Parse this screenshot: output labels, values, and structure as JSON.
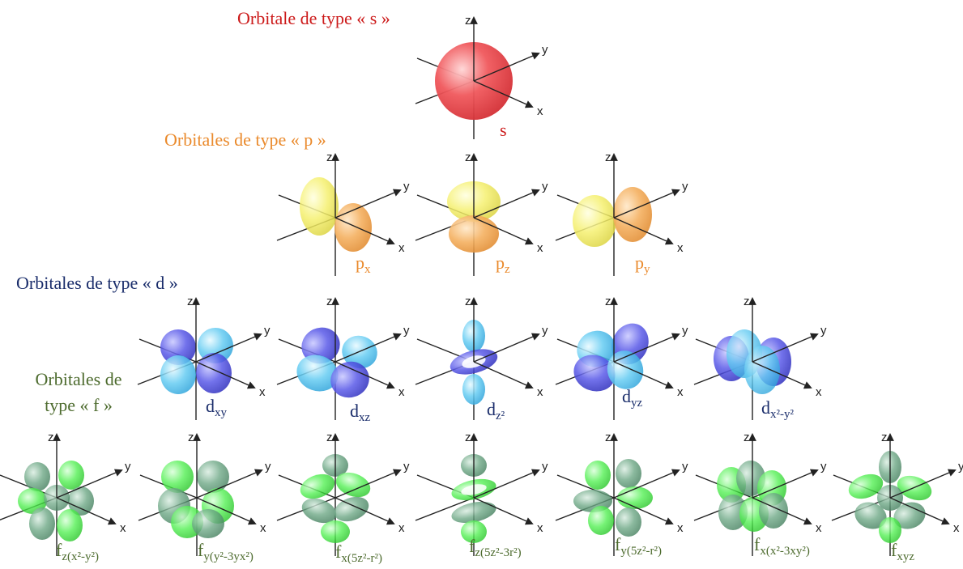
{
  "colors": {
    "s_heading": "#cc1a1a",
    "p_heading": "#ea8a2c",
    "d_heading": "#1a2d6b",
    "f_heading": "#4d6b2e",
    "s_orbital": "#f0585c",
    "p_pos": "#f5f070",
    "p_neg": "#f4b060",
    "d_pos": "#5a5ae8",
    "d_neg": "#66ccf2",
    "f_pos": "#55f055",
    "f_neg": "#6ea886",
    "axis": "#222222"
  },
  "headings": {
    "s": "Orbitale de type « s »",
    "p": "Orbitales de type « p »",
    "d": "Orbitales de type « d »",
    "f_line1": "Orbitales de",
    "f_line2": "type « f »"
  },
  "axes": {
    "x": "x",
    "y": "y",
    "z": "z"
  },
  "orbitals": {
    "s": {
      "main": "s",
      "sub": ""
    },
    "px": {
      "main": "p",
      "sub": "x"
    },
    "pz": {
      "main": "p",
      "sub": "z"
    },
    "py": {
      "main": "p",
      "sub": "y"
    },
    "dxy": {
      "main": "d",
      "sub": "xy"
    },
    "dxz": {
      "main": "d",
      "sub": "xz"
    },
    "dz2": {
      "main": "d",
      "sub": "z²"
    },
    "dyz": {
      "main": "d",
      "sub": "yz"
    },
    "dx2y2": {
      "main": "d",
      "sub": "x²-y²"
    },
    "f1": {
      "main": "f",
      "sub": "z(x²-y²)"
    },
    "f2": {
      "main": "f",
      "sub": "y(y²-3yx²)"
    },
    "f3": {
      "main": "f",
      "sub": "x(5z²-r²)"
    },
    "f4": {
      "main": "f",
      "sub": "z(5z²-3r²)"
    },
    "f5": {
      "main": "f",
      "sub": "y(5z²-r²)"
    },
    "f6": {
      "main": "f",
      "sub": "x(x²-3xy²)"
    },
    "f7": {
      "main": "f",
      "sub": "xyz"
    }
  }
}
